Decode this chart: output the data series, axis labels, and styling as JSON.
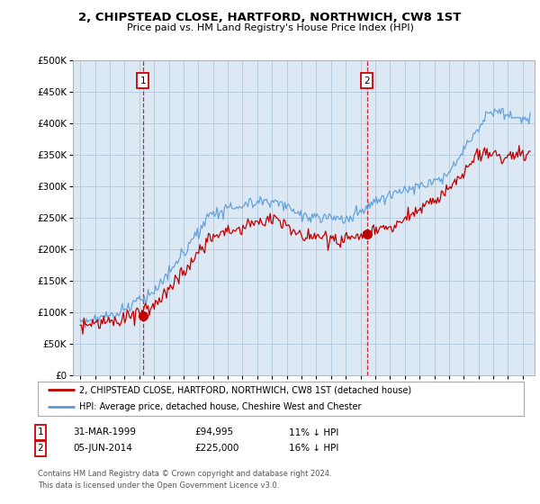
{
  "title": "2, CHIPSTEAD CLOSE, HARTFORD, NORTHWICH, CW8 1ST",
  "subtitle": "Price paid vs. HM Land Registry's House Price Index (HPI)",
  "legend_line1": "2, CHIPSTEAD CLOSE, HARTFORD, NORTHWICH, CW8 1ST (detached house)",
  "legend_line2": "HPI: Average price, detached house, Cheshire West and Chester",
  "annotation1_date": "31-MAR-1999",
  "annotation1_price": "£94,995",
  "annotation1_hpi": "11% ↓ HPI",
  "annotation2_date": "05-JUN-2014",
  "annotation2_price": "£225,000",
  "annotation2_hpi": "16% ↓ HPI",
  "footer": "Contains HM Land Registry data © Crown copyright and database right 2024.\nThis data is licensed under the Open Government Licence v3.0.",
  "hpi_color": "#5b9bd5",
  "price_color": "#c00000",
  "annotation_color": "#cc0000",
  "bg_chart": "#dce9f5",
  "background_color": "#ffffff",
  "grid_color": "#aec8e0",
  "ylim": [
    0,
    500000
  ],
  "yticks": [
    0,
    50000,
    100000,
    150000,
    200000,
    250000,
    300000,
    350000,
    400000,
    450000,
    500000
  ],
  "sale1_year": 1999.25,
  "sale1_price": 94995,
  "sale2_year": 2014.43,
  "sale2_price": 225000
}
